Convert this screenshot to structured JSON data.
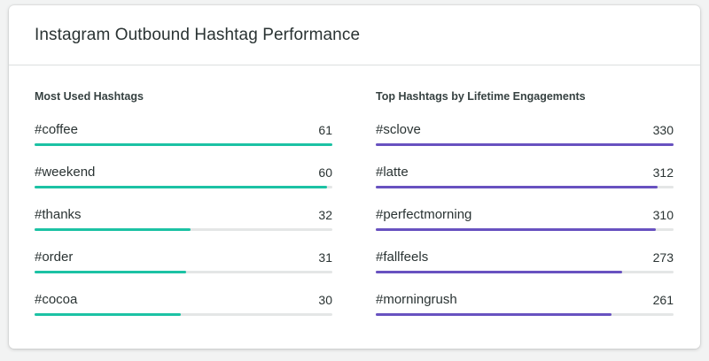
{
  "title": "Instagram Outbound Hashtag Performance",
  "colors": {
    "left_bar": "#1cc2a4",
    "right_bar": "#6852c0"
  },
  "left": {
    "title": "Most Used Hashtags",
    "max": 61,
    "items": [
      {
        "label": "#coffee",
        "value": 61
      },
      {
        "label": "#weekend",
        "value": 60
      },
      {
        "label": "#thanks",
        "value": 32
      },
      {
        "label": "#order",
        "value": 31
      },
      {
        "label": "#cocoa",
        "value": 30
      }
    ]
  },
  "right": {
    "title": "Top Hashtags by Lifetime Engagements",
    "max": 330,
    "items": [
      {
        "label": "#sclove",
        "value": 330
      },
      {
        "label": "#latte",
        "value": 312
      },
      {
        "label": "#perfectmorning",
        "value": 310
      },
      {
        "label": "#fallfeels",
        "value": 273
      },
      {
        "label": "#morningrush",
        "value": 261
      }
    ]
  }
}
